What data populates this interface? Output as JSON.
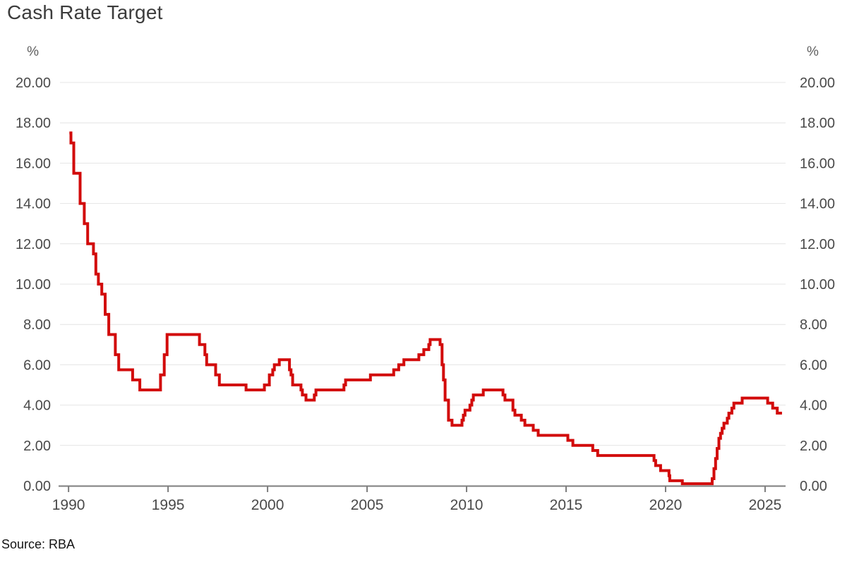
{
  "header": {
    "title": "Cash Rate Target"
  },
  "footer": {
    "source": "Source: RBA"
  },
  "chart_data": {
    "type": "line",
    "title": "Cash Rate Target",
    "unit_label_left": "%",
    "unit_label_right": "%",
    "source": "Source: RBA",
    "line_color": "#d20a0a",
    "grid_color": "#e4e4e4",
    "axis_color": "#7d7d7d",
    "label_color": "#4a4a4a",
    "unit_color": "#5f5f5f",
    "step_interpolation": "step-after",
    "legend": "none",
    "grid": "horizontal-only",
    "xlim": [
      1989.57,
      2026.03
    ],
    "ylim": [
      0,
      20
    ],
    "x_ticks": [
      1990,
      1995,
      2000,
      2005,
      2010,
      2015,
      2020,
      2025
    ],
    "y_ticks": [
      {
        "value": 0,
        "label": "0.00"
      },
      {
        "value": 2,
        "label": "2.00"
      },
      {
        "value": 4,
        "label": "4.00"
      },
      {
        "value": 6,
        "label": "6.00"
      },
      {
        "value": 8,
        "label": "8.00"
      },
      {
        "value": 10,
        "label": "10.00"
      },
      {
        "value": 12,
        "label": "12.00"
      },
      {
        "value": 14,
        "label": "14.00"
      },
      {
        "value": 16,
        "label": "16.00"
      },
      {
        "value": 18,
        "label": "18.00"
      },
      {
        "value": 20,
        "label": "20.00"
      }
    ],
    "series": [
      {
        "name": "Cash Rate Target",
        "unit": "%",
        "points": [
          [
            1990.04,
            17.5
          ],
          [
            1990.12,
            17.0
          ],
          [
            1990.26,
            15.5
          ],
          [
            1990.58,
            14.0
          ],
          [
            1990.79,
            13.0
          ],
          [
            1990.96,
            12.0
          ],
          [
            1991.25,
            11.5
          ],
          [
            1991.37,
            10.5
          ],
          [
            1991.5,
            10.0
          ],
          [
            1991.67,
            9.5
          ],
          [
            1991.84,
            8.5
          ],
          [
            1992.02,
            7.5
          ],
          [
            1992.35,
            6.5
          ],
          [
            1992.52,
            5.75
          ],
          [
            1993.22,
            5.25
          ],
          [
            1993.58,
            4.75
          ],
          [
            1994.62,
            5.5
          ],
          [
            1994.81,
            6.5
          ],
          [
            1994.95,
            7.5
          ],
          [
            1996.58,
            7.0
          ],
          [
            1996.85,
            6.5
          ],
          [
            1996.94,
            6.0
          ],
          [
            1997.39,
            5.5
          ],
          [
            1997.58,
            5.0
          ],
          [
            1998.92,
            4.75
          ],
          [
            1999.84,
            5.0
          ],
          [
            2000.09,
            5.5
          ],
          [
            2000.26,
            5.75
          ],
          [
            2000.34,
            6.0
          ],
          [
            2000.59,
            6.25
          ],
          [
            2001.1,
            5.75
          ],
          [
            2001.18,
            5.5
          ],
          [
            2001.26,
            5.0
          ],
          [
            2001.68,
            4.75
          ],
          [
            2001.75,
            4.5
          ],
          [
            2001.93,
            4.25
          ],
          [
            2002.35,
            4.5
          ],
          [
            2002.43,
            4.75
          ],
          [
            2003.84,
            5.0
          ],
          [
            2003.92,
            5.25
          ],
          [
            2005.17,
            5.5
          ],
          [
            2006.34,
            5.75
          ],
          [
            2006.59,
            6.0
          ],
          [
            2006.85,
            6.25
          ],
          [
            2007.6,
            6.5
          ],
          [
            2007.85,
            6.75
          ],
          [
            2008.1,
            7.0
          ],
          [
            2008.17,
            7.25
          ],
          [
            2008.67,
            7.0
          ],
          [
            2008.77,
            6.0
          ],
          [
            2008.84,
            5.25
          ],
          [
            2008.92,
            4.25
          ],
          [
            2009.09,
            3.25
          ],
          [
            2009.27,
            3.0
          ],
          [
            2009.77,
            3.25
          ],
          [
            2009.84,
            3.5
          ],
          [
            2009.92,
            3.75
          ],
          [
            2010.17,
            4.0
          ],
          [
            2010.26,
            4.25
          ],
          [
            2010.34,
            4.5
          ],
          [
            2010.84,
            4.75
          ],
          [
            2011.83,
            4.5
          ],
          [
            2011.93,
            4.25
          ],
          [
            2012.33,
            3.75
          ],
          [
            2012.43,
            3.5
          ],
          [
            2012.75,
            3.25
          ],
          [
            2012.93,
            3.0
          ],
          [
            2013.35,
            2.75
          ],
          [
            2013.6,
            2.5
          ],
          [
            2015.09,
            2.25
          ],
          [
            2015.34,
            2.0
          ],
          [
            2016.34,
            1.75
          ],
          [
            2016.59,
            1.5
          ],
          [
            2019.42,
            1.25
          ],
          [
            2019.5,
            1.0
          ],
          [
            2019.75,
            0.75
          ],
          [
            2020.17,
            0.5
          ],
          [
            2020.21,
            0.25
          ],
          [
            2020.84,
            0.1
          ],
          [
            2022.34,
            0.35
          ],
          [
            2022.43,
            0.85
          ],
          [
            2022.51,
            1.35
          ],
          [
            2022.59,
            1.85
          ],
          [
            2022.68,
            2.35
          ],
          [
            2022.76,
            2.6
          ],
          [
            2022.84,
            2.85
          ],
          [
            2022.93,
            3.1
          ],
          [
            2023.1,
            3.35
          ],
          [
            2023.18,
            3.6
          ],
          [
            2023.33,
            3.85
          ],
          [
            2023.43,
            4.1
          ],
          [
            2023.85,
            4.35
          ],
          [
            2025.13,
            4.1
          ],
          [
            2025.38,
            3.85
          ],
          [
            2025.61,
            3.6
          ],
          [
            2025.85,
            3.6
          ]
        ]
      }
    ]
  }
}
